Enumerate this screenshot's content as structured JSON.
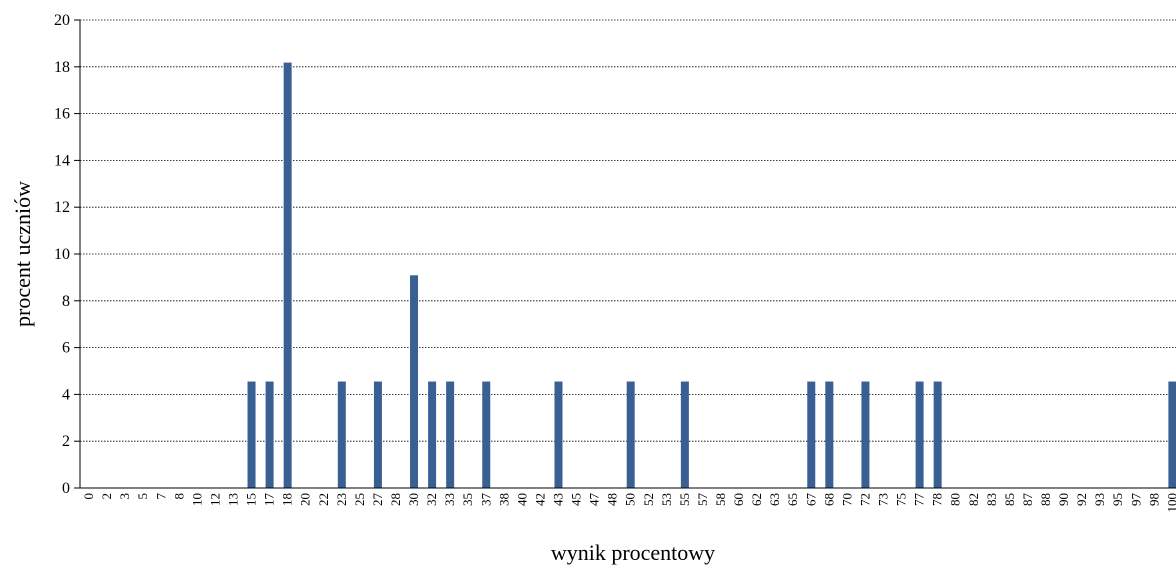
{
  "chart_data": {
    "type": "bar",
    "title": "",
    "xlabel": "wynik procentowy",
    "ylabel": "procent uczniów",
    "ylim": [
      0,
      20
    ],
    "yticks": [
      0,
      2,
      4,
      6,
      8,
      10,
      12,
      14,
      16,
      18,
      20
    ],
    "grid": "horizontal dotted",
    "legend": "none",
    "bar_color": "#3a5f93",
    "categories": [
      "0",
      "2",
      "3",
      "5",
      "7",
      "8",
      "10",
      "12",
      "13",
      "15",
      "17",
      "18",
      "20",
      "22",
      "23",
      "25",
      "27",
      "28",
      "30",
      "32",
      "33",
      "35",
      "37",
      "38",
      "40",
      "42",
      "43",
      "45",
      "47",
      "48",
      "50",
      "52",
      "53",
      "55",
      "57",
      "58",
      "60",
      "62",
      "63",
      "65",
      "67",
      "68",
      "70",
      "72",
      "73",
      "75",
      "77",
      "78",
      "80",
      "82",
      "83",
      "85",
      "87",
      "88",
      "90",
      "92",
      "93",
      "95",
      "97",
      "98",
      "100"
    ],
    "values": [
      0,
      0,
      0,
      0,
      0,
      0,
      0,
      0,
      0,
      4.55,
      4.55,
      18.18,
      0,
      0,
      4.55,
      0,
      4.55,
      0,
      9.09,
      4.55,
      4.55,
      0,
      4.55,
      0,
      0,
      0,
      4.55,
      0,
      0,
      0,
      4.55,
      0,
      0,
      4.55,
      0,
      0,
      0,
      0,
      0,
      0,
      4.55,
      4.55,
      0,
      4.55,
      0,
      0,
      4.55,
      4.55,
      0,
      0,
      0,
      0,
      0,
      0,
      0,
      0,
      0,
      0,
      0,
      0,
      4.55
    ]
  }
}
